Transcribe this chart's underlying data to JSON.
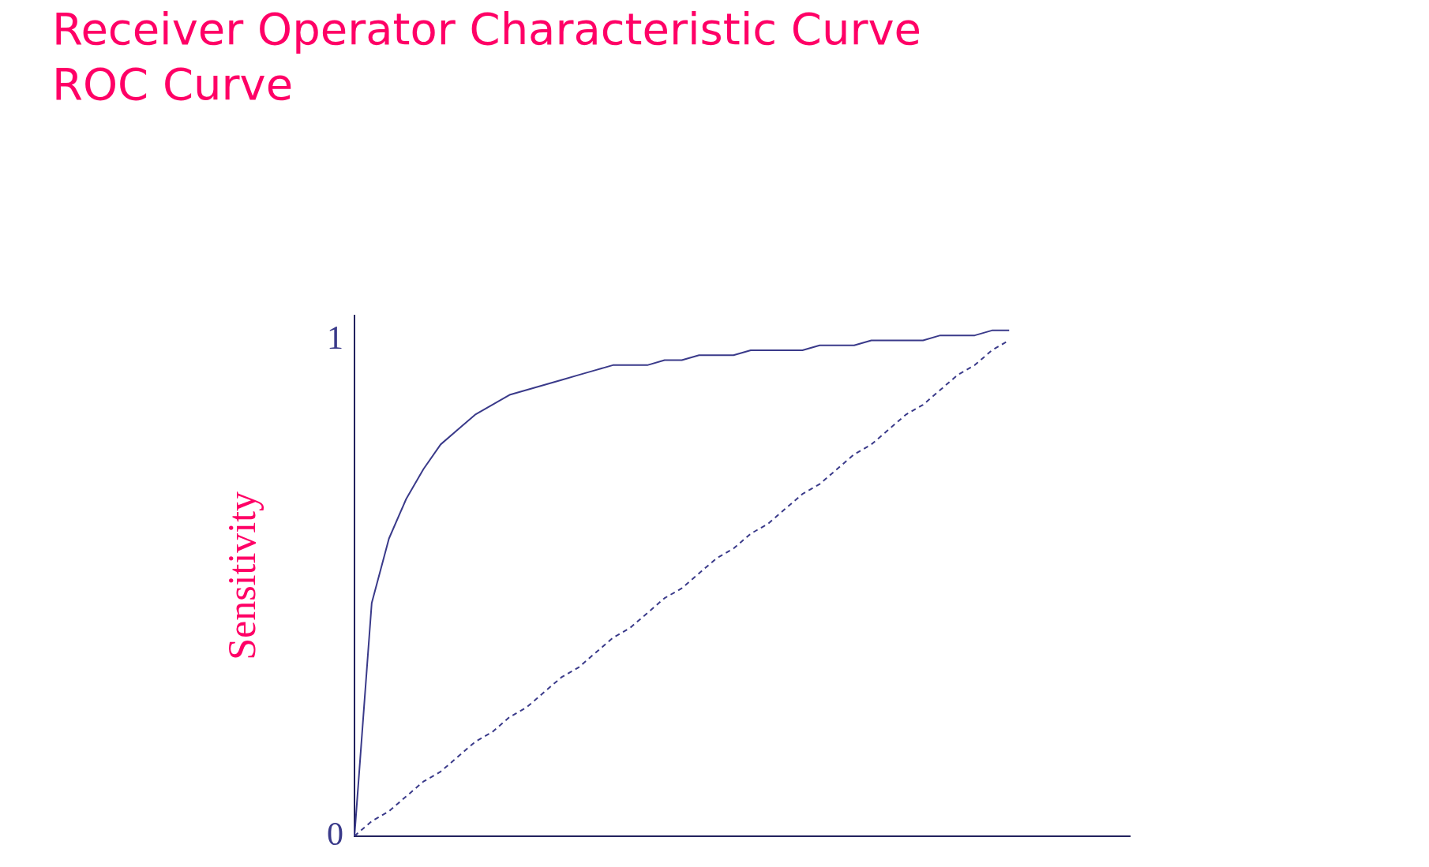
{
  "chart_data": {
    "type": "line",
    "title": "Receiver Operator Characteristic Curve",
    "subtitle": "ROC Curve",
    "ylabel": "Sensitivity",
    "categories": [
      null,
      null,
      null,
      null,
      null,
      null,
      null,
      null,
      null,
      null,
      null,
      null,
      null,
      null,
      null,
      null,
      null,
      null,
      null,
      null,
      null,
      null,
      null,
      null,
      null,
      null,
      null,
      null,
      null,
      null,
      null,
      null,
      null,
      null,
      null,
      null,
      null,
      null,
      null,
      null,
      null,
      null,
      null,
      null,
      null,
      null
    ],
    "series": [
      {
        "color": "#3a3a8a",
        "line_style": "solid",
        "values": [
          0,
          0.47,
          0.6,
          0.68,
          0.74,
          0.79,
          0.82,
          0.85,
          0.87,
          0.89,
          0.9,
          0.91,
          0.92,
          0.93,
          0.94,
          0.95,
          0.95,
          0.95,
          0.96,
          0.96,
          0.97,
          0.97,
          0.97,
          0.98,
          0.98,
          0.98,
          0.98,
          0.99,
          0.99,
          0.99,
          1.0,
          1.0,
          1.0,
          1.0,
          1.01,
          1.01,
          1.01,
          1.02,
          1.02,
          null,
          null,
          null,
          null,
          null,
          null,
          null
        ]
      },
      {
        "color": "#3a3a8a",
        "line_style": "dashed",
        "values": [
          0,
          0.03,
          0.05,
          0.08,
          0.11,
          0.13,
          0.16,
          0.19,
          0.21,
          0.24,
          0.26,
          0.29,
          0.32,
          0.34,
          0.37,
          0.4,
          0.42,
          0.45,
          0.48,
          0.5,
          0.53,
          0.56,
          0.58,
          0.61,
          0.63,
          0.66,
          0.69,
          0.71,
          0.74,
          0.77,
          0.79,
          0.82,
          0.85,
          0.87,
          0.9,
          0.93,
          0.95,
          0.98,
          1.0,
          null,
          null,
          null,
          null,
          null,
          null,
          null
        ]
      }
    ],
    "ylim": [
      0,
      1.05
    ],
    "yticks": [
      0,
      1
    ],
    "tick_labels": "y",
    "grid": false,
    "marker": "none"
  }
}
